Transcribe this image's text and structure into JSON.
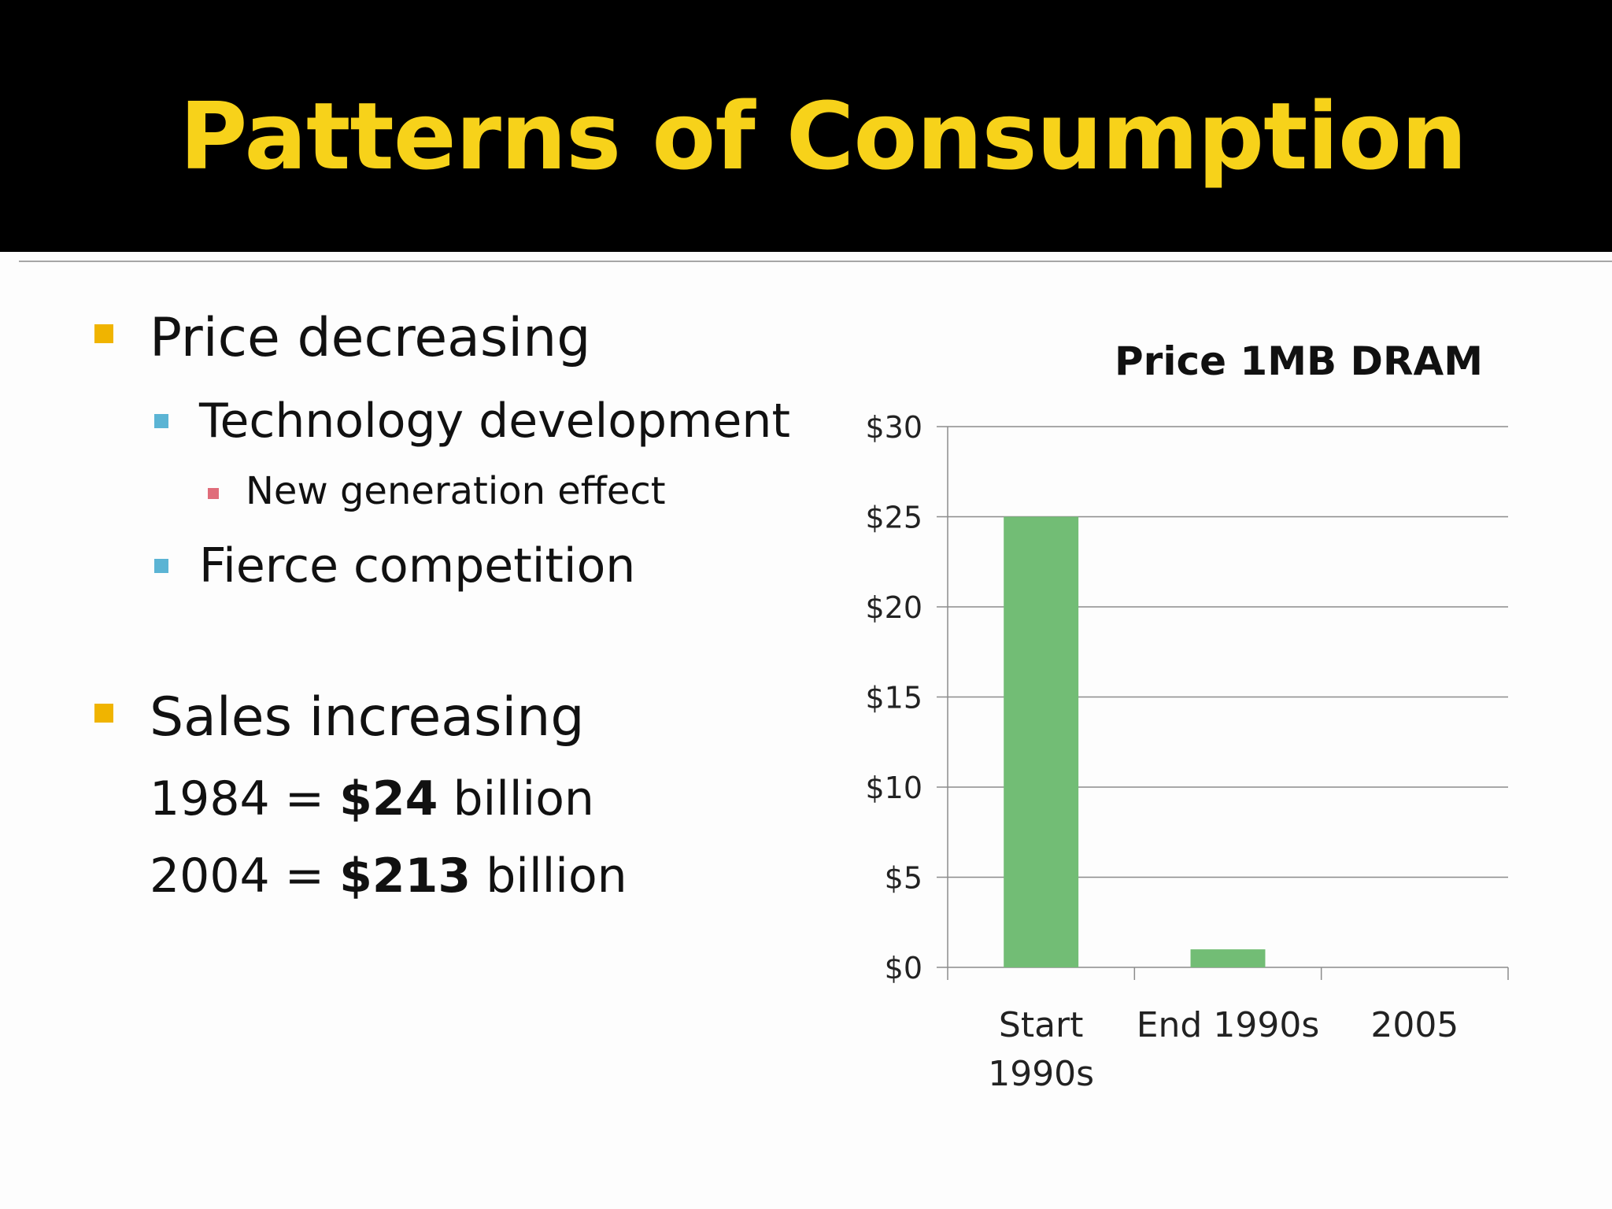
{
  "slide": {
    "title": "Patterns of Consumption",
    "colors": {
      "title_bar": "#000000",
      "title_text": "#f7d21a",
      "bullet_level1": "#f0b400",
      "bullet_level2": "#5bb4d4",
      "bullet_level3": "#e06c7a",
      "bar": "#72bd75"
    }
  },
  "bullets": {
    "price": "Price decreasing",
    "tech": "Technology development",
    "new_gen": "New generation effect",
    "competition": "Fierce competition",
    "sales": "Sales increasing"
  },
  "sales": {
    "line1_prefix": "1984 = ",
    "line1_value": "$24",
    "line1_suffix": " billion",
    "line2_prefix": "2004 = ",
    "line2_value": "$213",
    "line2_suffix": " billion"
  },
  "chart_data": {
    "type": "bar",
    "title": "Price 1MB DRAM",
    "categories": [
      "Start 1990s",
      "End 1990s",
      "2005"
    ],
    "category_lines": [
      [
        "Start",
        "1990s"
      ],
      [
        "End 1990s"
      ],
      [
        "2005"
      ]
    ],
    "values": [
      25,
      1,
      0
    ],
    "ylim": [
      0,
      30
    ],
    "yticks": [
      0,
      5,
      10,
      15,
      20,
      25,
      30
    ],
    "ytick_labels": [
      "$0",
      "$5",
      "$10",
      "$15",
      "$20",
      "$25",
      "$30"
    ],
    "xlabel": "",
    "ylabel": "",
    "grid": true,
    "legend": "none",
    "bar_color": "#72bd75"
  }
}
